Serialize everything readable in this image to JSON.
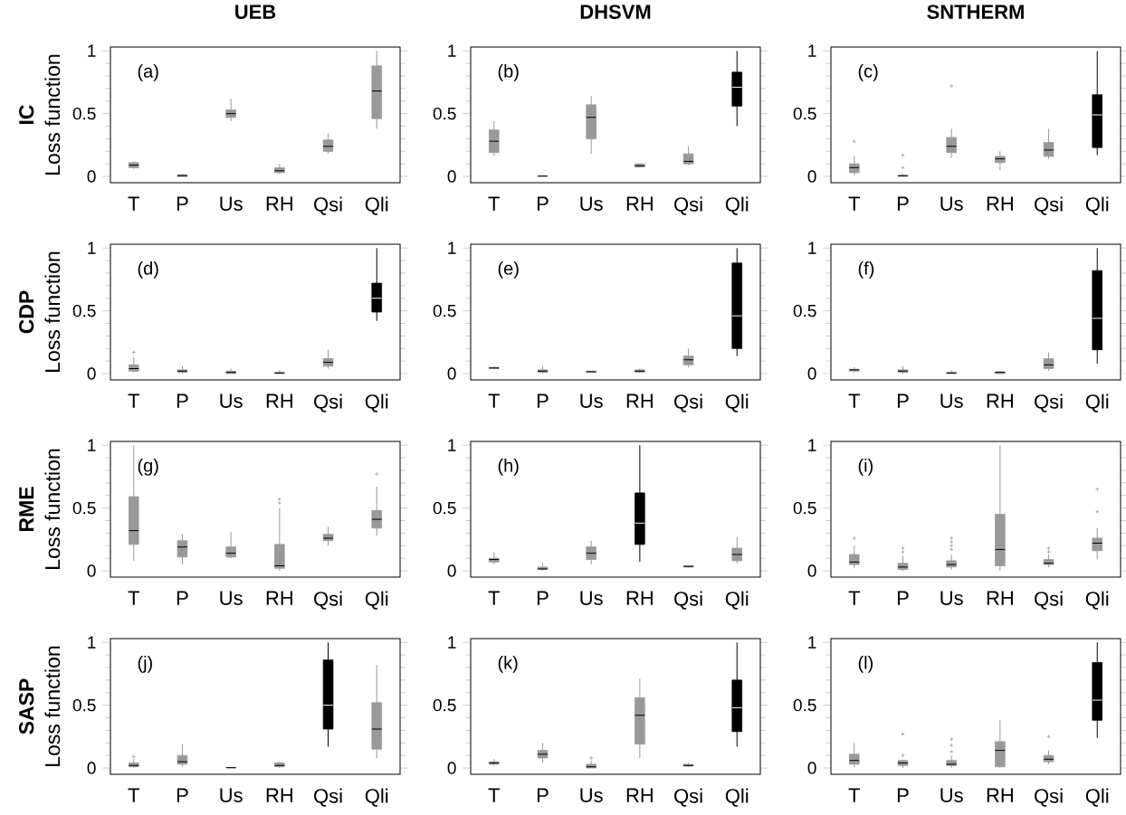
{
  "chart_data": [
    {
      "type": "box",
      "title": "UEB",
      "ylabel": "Loss function",
      "annotations": [
        "IC",
        "(a)"
      ],
      "categories": [
        "T",
        "P",
        "Us",
        "RH",
        "Qsi",
        "Qli"
      ],
      "ylim": [
        -0.05,
        1.03
      ],
      "yticks": [
        0,
        0.5,
        1
      ],
      "colors": [
        "#999999",
        "#999999",
        "#999999",
        "#999999",
        "#999999",
        "#999999"
      ],
      "boxes": [
        {
          "low": 0.06,
          "q1": 0.07,
          "median": 0.09,
          "q3": 0.11,
          "high": 0.12
        },
        {
          "low": 0,
          "q1": 0,
          "median": 0.005,
          "q3": 0.015,
          "high": 0.02
        },
        {
          "low": 0.44,
          "q1": 0.47,
          "median": 0.5,
          "q3": 0.53,
          "high": 0.62
        },
        {
          "low": 0.02,
          "q1": 0.03,
          "median": 0.045,
          "q3": 0.07,
          "high": 0.1
        },
        {
          "low": 0.18,
          "q1": 0.2,
          "median": 0.24,
          "q3": 0.29,
          "high": 0.34
        },
        {
          "low": 0.38,
          "q1": 0.46,
          "median": 0.68,
          "q3": 0.88,
          "high": 1.0
        }
      ]
    },
    {
      "type": "box",
      "title": "DHSVM",
      "annotations": [
        "(b)"
      ],
      "categories": [
        "T",
        "P",
        "Us",
        "RH",
        "Qsi",
        "Qli"
      ],
      "ylim": [
        -0.05,
        1.03
      ],
      "yticks": [
        0,
        0.5,
        1
      ],
      "colors": [
        "#999999",
        "#999999",
        "#999999",
        "#999999",
        "#999999",
        "#000000"
      ],
      "boxes": [
        {
          "low": 0.16,
          "q1": 0.19,
          "median": 0.28,
          "q3": 0.37,
          "high": 0.44
        },
        {
          "low": 0,
          "q1": 0,
          "median": 0.003,
          "q3": 0.005,
          "high": 0.01
        },
        {
          "low": 0.18,
          "q1": 0.3,
          "median": 0.47,
          "q3": 0.57,
          "high": 0.64
        },
        {
          "low": 0.07,
          "q1": 0.075,
          "median": 0.085,
          "q3": 0.1,
          "high": 0.1
        },
        {
          "low": 0.09,
          "q1": 0.1,
          "median": 0.12,
          "q3": 0.18,
          "high": 0.24
        },
        {
          "low": 0.4,
          "q1": 0.56,
          "median": 0.71,
          "q3": 0.83,
          "high": 1.0
        }
      ]
    },
    {
      "type": "box",
      "title": "SNTHERM",
      "annotations": [
        "(c)"
      ],
      "categories": [
        "T",
        "P",
        "Us",
        "RH",
        "Qsi",
        "Qli"
      ],
      "ylim": [
        -0.05,
        1.03
      ],
      "yticks": [
        0,
        0.5,
        1
      ],
      "colors": [
        "#999999",
        "#999999",
        "#999999",
        "#999999",
        "#999999",
        "#000000"
      ],
      "boxes": [
        {
          "low": 0.01,
          "q1": 0.03,
          "median": 0.07,
          "q3": 0.1,
          "high": 0.16,
          "outliers": [
            0.28
          ]
        },
        {
          "low": 0,
          "q1": 0,
          "median": 0.005,
          "q3": 0.01,
          "high": 0.02,
          "outliers": [
            0.07,
            0.17
          ]
        },
        {
          "low": 0.15,
          "q1": 0.19,
          "median": 0.24,
          "q3": 0.31,
          "high": 0.38,
          "outliers": [
            0.72
          ]
        },
        {
          "low": 0.05,
          "q1": 0.11,
          "median": 0.14,
          "q3": 0.16,
          "high": 0.2
        },
        {
          "low": 0.14,
          "q1": 0.16,
          "median": 0.21,
          "q3": 0.27,
          "high": 0.38
        },
        {
          "low": 0.17,
          "q1": 0.23,
          "median": 0.49,
          "q3": 0.65,
          "high": 1.0
        }
      ]
    },
    {
      "type": "box",
      "ylabel": "Loss function",
      "annotations": [
        "CDP",
        "(d)"
      ],
      "categories": [
        "T",
        "P",
        "Us",
        "RH",
        "Qsi",
        "Qli"
      ],
      "ylim": [
        -0.05,
        1.03
      ],
      "yticks": [
        0,
        0.5,
        1
      ],
      "colors": [
        "#999999",
        "#999999",
        "#999999",
        "#999999",
        "#999999",
        "#000000"
      ],
      "boxes": [
        {
          "low": 0.01,
          "q1": 0.02,
          "median": 0.04,
          "q3": 0.07,
          "high": 0.13,
          "outliers": [
            0.17
          ]
        },
        {
          "low": 0,
          "q1": 0.01,
          "median": 0.02,
          "q3": 0.03,
          "high": 0.06
        },
        {
          "low": 0,
          "q1": 0,
          "median": 0.01,
          "q3": 0.02,
          "high": 0.04
        },
        {
          "low": 0,
          "q1": 0,
          "median": 0.005,
          "q3": 0.01,
          "high": 0.03
        },
        {
          "low": 0.04,
          "q1": 0.06,
          "median": 0.09,
          "q3": 0.12,
          "high": 0.19
        },
        {
          "low": 0.42,
          "q1": 0.49,
          "median": 0.6,
          "q3": 0.72,
          "high": 1.0
        }
      ]
    },
    {
      "type": "box",
      "annotations": [
        "(e)"
      ],
      "categories": [
        "T",
        "P",
        "Us",
        "RH",
        "Qsi",
        "Qli"
      ],
      "ylim": [
        -0.05,
        1.03
      ],
      "yticks": [
        0,
        0.5,
        1
      ],
      "colors": [
        "#999999",
        "#999999",
        "#999999",
        "#999999",
        "#999999",
        "#000000"
      ],
      "boxes": [
        {
          "low": 0.035,
          "q1": 0.04,
          "median": 0.045,
          "q3": 0.05,
          "high": 0.055
        },
        {
          "low": 0,
          "q1": 0.01,
          "median": 0.02,
          "q3": 0.03,
          "high": 0.06
        },
        {
          "low": 0.01,
          "q1": 0.01,
          "median": 0.015,
          "q3": 0.02,
          "high": 0.02
        },
        {
          "low": 0.01,
          "q1": 0.01,
          "median": 0.02,
          "q3": 0.03,
          "high": 0.04
        },
        {
          "low": 0.05,
          "q1": 0.07,
          "median": 0.11,
          "q3": 0.14,
          "high": 0.2
        },
        {
          "low": 0.14,
          "q1": 0.2,
          "median": 0.46,
          "q3": 0.88,
          "high": 1.0
        }
      ]
    },
    {
      "type": "box",
      "annotations": [
        "(f)"
      ],
      "categories": [
        "T",
        "P",
        "Us",
        "RH",
        "Qsi",
        "Qli"
      ],
      "ylim": [
        -0.05,
        1.03
      ],
      "yticks": [
        0,
        0.5,
        1
      ],
      "colors": [
        "#999999",
        "#999999",
        "#999999",
        "#999999",
        "#999999",
        "#000000"
      ],
      "boxes": [
        {
          "low": 0.01,
          "q1": 0.02,
          "median": 0.03,
          "q3": 0.035,
          "high": 0.05
        },
        {
          "low": 0,
          "q1": 0.01,
          "median": 0.02,
          "q3": 0.03,
          "high": 0.06
        },
        {
          "low": 0,
          "q1": 0,
          "median": 0.005,
          "q3": 0.01,
          "high": 0.03
        },
        {
          "low": 0,
          "q1": 0,
          "median": 0.01,
          "q3": 0.015,
          "high": 0.02
        },
        {
          "low": 0.02,
          "q1": 0.04,
          "median": 0.07,
          "q3": 0.12,
          "high": 0.17
        },
        {
          "low": 0.08,
          "q1": 0.19,
          "median": 0.44,
          "q3": 0.82,
          "high": 1.0
        }
      ]
    },
    {
      "type": "box",
      "ylabel": "Loss function",
      "annotations": [
        "RME",
        "(g)"
      ],
      "categories": [
        "T",
        "P",
        "Us",
        "RH",
        "Qsi",
        "Qli"
      ],
      "ylim": [
        -0.05,
        1.03
      ],
      "yticks": [
        0,
        0.5,
        1
      ],
      "colors": [
        "#999999",
        "#999999",
        "#999999",
        "#999999",
        "#999999",
        "#999999"
      ],
      "boxes": [
        {
          "low": 0.08,
          "q1": 0.21,
          "median": 0.32,
          "q3": 0.59,
          "high": 1.0
        },
        {
          "low": 0.05,
          "q1": 0.11,
          "median": 0.19,
          "q3": 0.24,
          "high": 0.29
        },
        {
          "low": 0.1,
          "q1": 0.11,
          "median": 0.14,
          "q3": 0.19,
          "high": 0.31
        },
        {
          "low": 0,
          "q1": 0.02,
          "median": 0.04,
          "q3": 0.21,
          "high": 0.5,
          "outliers": [
            0.54,
            0.57
          ]
        },
        {
          "low": 0.2,
          "q1": 0.24,
          "median": 0.26,
          "q3": 0.29,
          "high": 0.35
        },
        {
          "low": 0.28,
          "q1": 0.34,
          "median": 0.41,
          "q3": 0.48,
          "high": 0.67,
          "outliers": [
            0.77
          ]
        }
      ]
    },
    {
      "type": "box",
      "annotations": [
        "(h)"
      ],
      "categories": [
        "T",
        "P",
        "Us",
        "RH",
        "Qsi",
        "Qli"
      ],
      "ylim": [
        -0.05,
        1.03
      ],
      "yticks": [
        0,
        0.5,
        1
      ],
      "colors": [
        "#999999",
        "#999999",
        "#999999",
        "#000000",
        "#999999",
        "#999999"
      ],
      "boxes": [
        {
          "low": 0.05,
          "q1": 0.07,
          "median": 0.09,
          "q3": 0.1,
          "high": 0.15
        },
        {
          "low": 0,
          "q1": 0.01,
          "median": 0.015,
          "q3": 0.03,
          "high": 0.06
        },
        {
          "low": 0.05,
          "q1": 0.09,
          "median": 0.14,
          "q3": 0.19,
          "high": 0.24
        },
        {
          "low": 0.07,
          "q1": 0.21,
          "median": 0.38,
          "q3": 0.62,
          "high": 1.0
        },
        {
          "low": 0.025,
          "q1": 0.03,
          "median": 0.035,
          "q3": 0.04,
          "high": 0.045
        },
        {
          "low": 0.06,
          "q1": 0.08,
          "median": 0.13,
          "q3": 0.18,
          "high": 0.27
        }
      ]
    },
    {
      "type": "box",
      "annotations": [
        "(i)"
      ],
      "categories": [
        "T",
        "P",
        "Us",
        "RH",
        "Qsi",
        "Qli"
      ],
      "ylim": [
        -0.05,
        1.03
      ],
      "yticks": [
        0,
        0.5,
        1
      ],
      "colors": [
        "#999999",
        "#999999",
        "#999999",
        "#999999",
        "#999999",
        "#999999"
      ],
      "boxes": [
        {
          "low": 0.02,
          "q1": 0.05,
          "median": 0.07,
          "q3": 0.13,
          "high": 0.2,
          "outliers": [
            0.26
          ]
        },
        {
          "low": 0,
          "q1": 0.01,
          "median": 0.03,
          "q3": 0.06,
          "high": 0.12,
          "outliers": [
            0.15,
            0.18
          ]
        },
        {
          "low": 0.01,
          "q1": 0.03,
          "median": 0.05,
          "q3": 0.08,
          "high": 0.13,
          "outliers": [
            0.17,
            0.2,
            0.23,
            0.26
          ]
        },
        {
          "low": 0,
          "q1": 0.04,
          "median": 0.17,
          "q3": 0.45,
          "high": 1.0
        },
        {
          "low": 0.03,
          "q1": 0.05,
          "median": 0.06,
          "q3": 0.09,
          "high": 0.13,
          "outliers": [
            0.15,
            0.18
          ]
        },
        {
          "low": 0.09,
          "q1": 0.16,
          "median": 0.22,
          "q3": 0.26,
          "high": 0.34,
          "outliers": [
            0.47,
            0.65
          ]
        }
      ]
    },
    {
      "type": "box",
      "ylabel": "Loss function",
      "annotations": [
        "SASP",
        "(j)"
      ],
      "categories": [
        "T",
        "P",
        "Us",
        "RH",
        "Qsi",
        "Qli"
      ],
      "ylim": [
        -0.05,
        1.03
      ],
      "yticks": [
        0,
        0.5,
        1
      ],
      "colors": [
        "#999999",
        "#999999",
        "#999999",
        "#999999",
        "#000000",
        "#999999"
      ],
      "boxes": [
        {
          "low": 0,
          "q1": 0.01,
          "median": 0.02,
          "q3": 0.04,
          "high": 0.07,
          "outliers": [
            0.09
          ]
        },
        {
          "low": 0.01,
          "q1": 0.03,
          "median": 0.05,
          "q3": 0.1,
          "high": 0.19
        },
        {
          "low": 0,
          "q1": 0,
          "median": 0.003,
          "q3": 0.005,
          "high": 0.005
        },
        {
          "low": 0,
          "q1": 0.01,
          "median": 0.02,
          "q3": 0.04,
          "high": 0.05
        },
        {
          "low": 0.17,
          "q1": 0.31,
          "median": 0.5,
          "q3": 0.86,
          "high": 1.0
        },
        {
          "low": 0.08,
          "q1": 0.15,
          "median": 0.31,
          "q3": 0.52,
          "high": 0.82
        }
      ]
    },
    {
      "type": "box",
      "annotations": [
        "(k)"
      ],
      "categories": [
        "T",
        "P",
        "Us",
        "RH",
        "Qsi",
        "Qli"
      ],
      "ylim": [
        -0.05,
        1.03
      ],
      "yticks": [
        0,
        0.5,
        1
      ],
      "colors": [
        "#999999",
        "#999999",
        "#999999",
        "#999999",
        "#999999",
        "#000000"
      ],
      "boxes": [
        {
          "low": 0.02,
          "q1": 0.03,
          "median": 0.04,
          "q3": 0.05,
          "high": 0.07
        },
        {
          "low": 0.04,
          "q1": 0.08,
          "median": 0.11,
          "q3": 0.14,
          "high": 0.2
        },
        {
          "low": 0,
          "q1": 0,
          "median": 0.01,
          "q3": 0.03,
          "high": 0.06,
          "outliers": [
            0.08
          ]
        },
        {
          "low": 0.08,
          "q1": 0.19,
          "median": 0.42,
          "q3": 0.56,
          "high": 0.71
        },
        {
          "low": 0.01,
          "q1": 0.015,
          "median": 0.02,
          "q3": 0.03,
          "high": 0.04
        },
        {
          "low": 0.17,
          "q1": 0.29,
          "median": 0.48,
          "q3": 0.7,
          "high": 1.0
        }
      ]
    },
    {
      "type": "box",
      "annotations": [
        "(l)"
      ],
      "categories": [
        "T",
        "P",
        "Us",
        "RH",
        "Qsi",
        "Qli"
      ],
      "ylim": [
        -0.05,
        1.03
      ],
      "yticks": [
        0,
        0.5,
        1
      ],
      "colors": [
        "#999999",
        "#999999",
        "#999999",
        "#999999",
        "#999999",
        "#000000"
      ],
      "boxes": [
        {
          "low": 0.01,
          "q1": 0.03,
          "median": 0.06,
          "q3": 0.11,
          "high": 0.2
        },
        {
          "low": 0,
          "q1": 0.02,
          "median": 0.04,
          "q3": 0.06,
          "high": 0.06,
          "outliers": [
            0.1,
            0.27
          ]
        },
        {
          "low": 0,
          "q1": 0.02,
          "median": 0.03,
          "q3": 0.06,
          "high": 0.1,
          "outliers": [
            0.13,
            0.18,
            0.23
          ]
        },
        {
          "low": 0,
          "q1": 0.01,
          "median": 0.14,
          "q3": 0.21,
          "high": 0.38
        },
        {
          "low": 0.03,
          "q1": 0.05,
          "median": 0.07,
          "q3": 0.1,
          "high": 0.14,
          "outliers": [
            0.25
          ]
        },
        {
          "low": 0.24,
          "q1": 0.38,
          "median": 0.54,
          "q3": 0.84,
          "high": 1.0
        }
      ]
    }
  ]
}
